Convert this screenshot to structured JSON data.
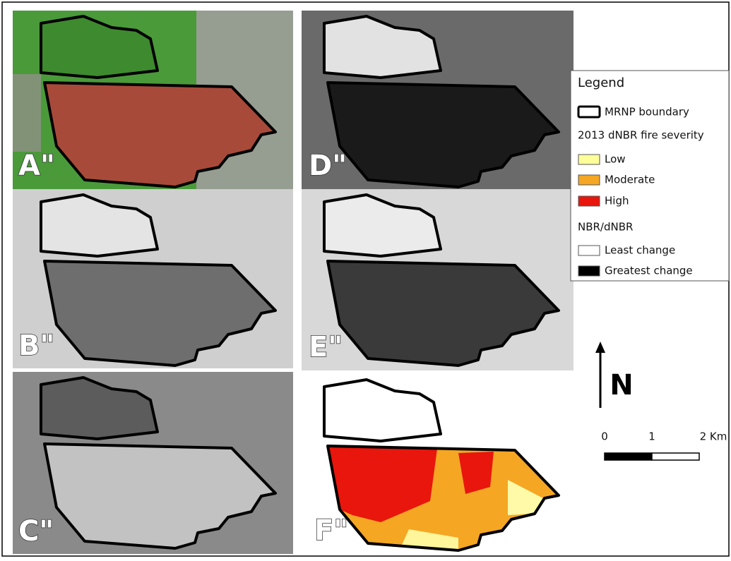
{
  "panels": [
    "A\"",
    "B\"",
    "C\"",
    "D\"",
    "E\"",
    "F\""
  ],
  "legend": {
    "title": "Legend",
    "boundary": "MRNP boundary",
    "severity_title": "2013 dNBR fire severity",
    "severity": [
      "Low",
      "Moderate",
      "High"
    ],
    "nbr_title": "NBR/dNBR",
    "nbr": [
      "Least change",
      "Greatest change"
    ]
  },
  "north": "N",
  "scale": [
    "0",
    "1",
    "2 Km"
  ]
}
